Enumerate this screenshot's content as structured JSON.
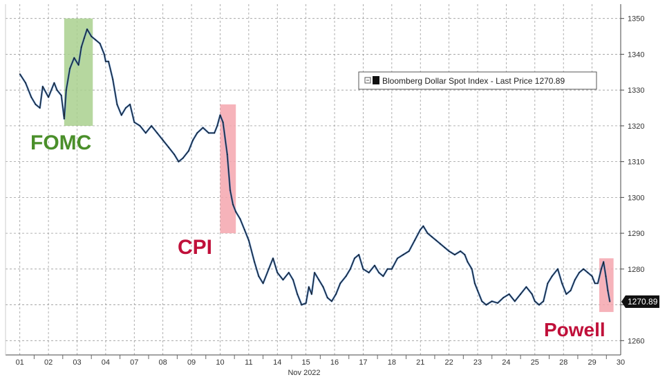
{
  "chart_data": {
    "type": "line",
    "title": "",
    "legend": {
      "label": "Bloomberg Dollar Spot Index - Last Price 1270.89",
      "position": "top-right"
    },
    "last_price_label": "1270.89",
    "xlabel": "Nov 2022",
    "ylabel": "",
    "ylim": [
      1256,
      1354
    ],
    "yticks": [
      1260,
      1270,
      1280,
      1290,
      1300,
      1310,
      1320,
      1330,
      1340,
      1350
    ],
    "x_ticks": [
      "01",
      "02",
      "03",
      "04",
      "07",
      "08",
      "09",
      "10",
      "11",
      "14",
      "15",
      "16",
      "17",
      "18",
      "21",
      "22",
      "23",
      "24",
      "25",
      "28",
      "29",
      "30"
    ],
    "grid": true,
    "series": [
      {
        "name": "Bloomberg Dollar Spot Index",
        "color": "#1a1a1a",
        "accent_color": "#2f6fbf",
        "points": [
          [
            0.0,
            1334.5
          ],
          [
            0.2,
            1332
          ],
          [
            0.4,
            1328
          ],
          [
            0.55,
            1326
          ],
          [
            0.7,
            1325
          ],
          [
            0.8,
            1331
          ],
          [
            1.0,
            1328
          ],
          [
            1.2,
            1332
          ],
          [
            1.3,
            1330
          ],
          [
            1.45,
            1328.5
          ],
          [
            1.55,
            1322
          ],
          [
            1.62,
            1330
          ],
          [
            1.75,
            1336
          ],
          [
            1.9,
            1339
          ],
          [
            2.05,
            1337
          ],
          [
            2.15,
            1342
          ],
          [
            2.25,
            1344.5
          ],
          [
            2.35,
            1347
          ],
          [
            2.5,
            1345
          ],
          [
            2.65,
            1344
          ],
          [
            2.8,
            1343
          ],
          [
            2.95,
            1340
          ],
          [
            3.0,
            1338
          ],
          [
            3.1,
            1338
          ],
          [
            3.25,
            1333
          ],
          [
            3.4,
            1326
          ],
          [
            3.55,
            1323
          ],
          [
            3.7,
            1325
          ],
          [
            3.85,
            1326
          ],
          [
            4.0,
            1321
          ],
          [
            4.2,
            1320
          ],
          [
            4.4,
            1318
          ],
          [
            4.6,
            1320
          ],
          [
            4.8,
            1318
          ],
          [
            5.0,
            1316
          ],
          [
            5.2,
            1314
          ],
          [
            5.4,
            1312
          ],
          [
            5.55,
            1310
          ],
          [
            5.7,
            1311
          ],
          [
            5.9,
            1313
          ],
          [
            6.05,
            1316
          ],
          [
            6.2,
            1318
          ],
          [
            6.4,
            1319.5
          ],
          [
            6.6,
            1318
          ],
          [
            6.8,
            1318
          ],
          [
            6.9,
            1320
          ],
          [
            7.0,
            1323
          ],
          [
            7.1,
            1321
          ],
          [
            7.25,
            1312
          ],
          [
            7.35,
            1302
          ],
          [
            7.45,
            1298
          ],
          [
            7.55,
            1296
          ],
          [
            7.7,
            1294
          ],
          [
            7.85,
            1291
          ],
          [
            8.0,
            1288
          ],
          [
            8.2,
            1282
          ],
          [
            8.35,
            1278
          ],
          [
            8.5,
            1276
          ],
          [
            8.7,
            1280
          ],
          [
            8.85,
            1283
          ],
          [
            9.0,
            1279
          ],
          [
            9.2,
            1277
          ],
          [
            9.4,
            1279
          ],
          [
            9.55,
            1277
          ],
          [
            9.7,
            1273
          ],
          [
            9.85,
            1270
          ],
          [
            10.0,
            1270.5
          ],
          [
            10.1,
            1275
          ],
          [
            10.2,
            1273
          ],
          [
            10.3,
            1279
          ],
          [
            10.45,
            1277
          ],
          [
            10.6,
            1275
          ],
          [
            10.75,
            1272
          ],
          [
            10.9,
            1271
          ],
          [
            11.05,
            1273
          ],
          [
            11.2,
            1276
          ],
          [
            11.4,
            1278
          ],
          [
            11.55,
            1280
          ],
          [
            11.7,
            1283
          ],
          [
            11.85,
            1284
          ],
          [
            12.0,
            1280
          ],
          [
            12.2,
            1279
          ],
          [
            12.4,
            1281
          ],
          [
            12.55,
            1279
          ],
          [
            12.7,
            1278
          ],
          [
            12.85,
            1280
          ],
          [
            13.0,
            1280
          ],
          [
            13.2,
            1283
          ],
          [
            13.4,
            1284
          ],
          [
            13.6,
            1285
          ],
          [
            13.8,
            1288
          ],
          [
            14.0,
            1291
          ],
          [
            14.1,
            1292
          ],
          [
            14.25,
            1290
          ],
          [
            14.4,
            1289
          ],
          [
            14.55,
            1288
          ],
          [
            14.7,
            1287
          ],
          [
            14.85,
            1286
          ],
          [
            15.0,
            1285
          ],
          [
            15.2,
            1284
          ],
          [
            15.4,
            1285
          ],
          [
            15.55,
            1284
          ],
          [
            15.65,
            1282
          ],
          [
            15.8,
            1280
          ],
          [
            15.9,
            1276
          ],
          [
            16.0,
            1274
          ],
          [
            16.15,
            1271
          ],
          [
            16.3,
            1270
          ],
          [
            16.5,
            1271
          ],
          [
            16.7,
            1270.5
          ],
          [
            16.9,
            1272
          ],
          [
            17.1,
            1273
          ],
          [
            17.3,
            1271
          ],
          [
            17.5,
            1273
          ],
          [
            17.7,
            1275
          ],
          [
            17.9,
            1273
          ],
          [
            18.0,
            1271
          ],
          [
            18.15,
            1270
          ],
          [
            18.3,
            1271
          ],
          [
            18.45,
            1276
          ],
          [
            18.6,
            1278
          ],
          [
            18.8,
            1280
          ],
          [
            18.95,
            1276
          ],
          [
            19.1,
            1273
          ],
          [
            19.25,
            1274
          ],
          [
            19.4,
            1277
          ],
          [
            19.55,
            1279
          ],
          [
            19.7,
            1280
          ],
          [
            19.85,
            1279
          ],
          [
            20.0,
            1278
          ],
          [
            20.1,
            1276
          ],
          [
            20.2,
            1276
          ],
          [
            20.32,
            1280
          ],
          [
            20.4,
            1282
          ],
          [
            20.48,
            1278
          ],
          [
            20.55,
            1274
          ],
          [
            20.62,
            1270.89
          ]
        ]
      }
    ],
    "annotations": [
      {
        "label": "FOMC",
        "color": "#4a8f2a",
        "x_start": 1.55,
        "x_end": 2.55,
        "highlight": "#a9d08e"
      },
      {
        "label": "CPI",
        "color": "#c0103a",
        "x_start": 7.0,
        "x_end": 7.55,
        "highlight": "#f4a6ae"
      },
      {
        "label": "Powell",
        "color": "#c0103a",
        "x_start": 20.25,
        "x_end": 20.75,
        "highlight": "#f4a6ae"
      }
    ]
  }
}
